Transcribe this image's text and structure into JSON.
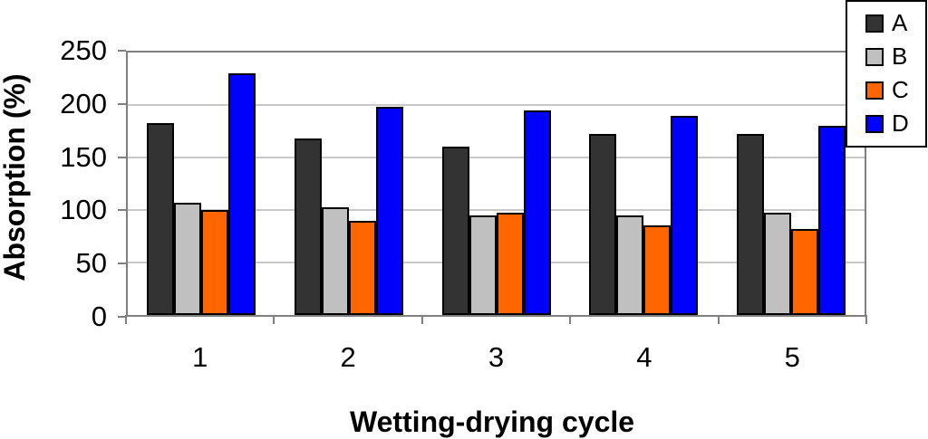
{
  "chart_data": {
    "type": "bar",
    "title": "",
    "xlabel": "Wetting-drying cycle",
    "ylabel": "Absorption (%)",
    "categories": [
      "1",
      "2",
      "3",
      "4",
      "5"
    ],
    "series": [
      {
        "name": "A",
        "color": "#333333",
        "values": [
          183,
          168,
          160,
          172,
          172
        ]
      },
      {
        "name": "B",
        "color": "#c0c0c0",
        "values": [
          107,
          103,
          95,
          95,
          97
        ]
      },
      {
        "name": "C",
        "color": "#ff6600",
        "values": [
          100,
          90,
          97,
          85,
          82
        ]
      },
      {
        "name": "D",
        "color": "#0000ff",
        "values": [
          230,
          198,
          195,
          190,
          180
        ]
      }
    ],
    "ylim": [
      0,
      250
    ],
    "yticks": [
      0,
      50,
      100,
      150,
      200,
      250
    ],
    "grid": true,
    "legend_position": "top-right",
    "colors": {
      "bar_border": "#000000",
      "gridline": "#c8c8c8",
      "axis_frame": "#808080",
      "text": "#000000",
      "legend_border": "#000000",
      "legend_bg": "#ffffff",
      "background": "#ffffff"
    }
  }
}
